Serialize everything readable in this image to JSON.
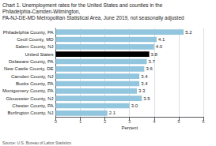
{
  "chart_data": {
    "type": "bar",
    "orientation": "horizontal",
    "title": "Chart 1. Unemployment rates for the United States and counties in the Philadelphia-Camden-Wilmington,\nPA-NJ-DE-MD Metropolitan Statistical Area, June 2019, not seasonally adjusted",
    "categories": [
      "Burlington County, NJ",
      "Chester County, PA",
      "Gloucester County, NJ",
      "Montgomery County, PA",
      "Bucks County, PA",
      "Camden County, NJ",
      "New Castle County, DE",
      "Delaware County, PA",
      "United States",
      "Salem County, NJ",
      "Cecil County, MD",
      "Philadelphia County, PA"
    ],
    "values": [
      2.1,
      3.0,
      3.5,
      3.3,
      3.4,
      3.4,
      3.6,
      3.7,
      3.8,
      4.0,
      4.1,
      5.2
    ],
    "value_labels": [
      "2.1",
      "3.0",
      "3.5",
      "3.3",
      "3.4",
      "3.4",
      "3.6",
      "3.7",
      "3.8",
      "4.0",
      "4.1",
      "5.2"
    ],
    "colors": [
      "#92c5de",
      "#92c5de",
      "#92c5de",
      "#92c5de",
      "#92c5de",
      "#92c5de",
      "#92c5de",
      "#92c5de",
      "#000000",
      "#92c5de",
      "#92c5de",
      "#92c5de"
    ],
    "xlabel": "Percent",
    "xlim": [
      0.0,
      6.0
    ],
    "xticks": [
      0.0,
      1.0,
      2.0,
      3.0,
      4.0,
      5.0,
      6.0
    ],
    "grid": true,
    "data_labels": true,
    "annotations": [
      "Source: U.S. Bureau of Labor Statistics"
    ]
  }
}
